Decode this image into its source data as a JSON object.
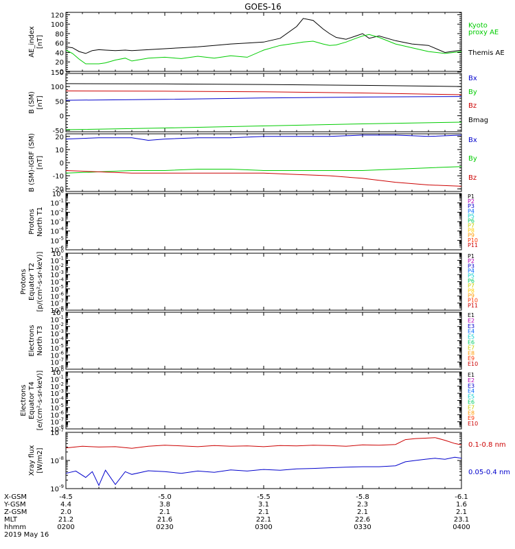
{
  "title": "GOES-16",
  "chart_data": [
    {
      "id": "ae",
      "type": "line",
      "ylabel": [
        "AE_index",
        "[nT]"
      ],
      "yscale": "linear",
      "ylim": [
        0,
        125
      ],
      "ticks": [
        0,
        20,
        40,
        60,
        80,
        100,
        120
      ],
      "tick_labels": [
        "0",
        "20",
        "40",
        "60",
        "80",
        "100",
        "120"
      ],
      "legend": [
        {
          "name": "Kyoto proxy AE",
          "lines": [
            "Kyoto",
            "proxy AE"
          ],
          "color": "#00cc00"
        },
        {
          "name": "Themis AE",
          "lines": [
            "Themis AE"
          ],
          "color": "#000000"
        }
      ],
      "series": [
        {
          "name": "Themis AE",
          "color": "#000000",
          "x": [
            0,
            2,
            4,
            6,
            8,
            10,
            12,
            15,
            18,
            20,
            25,
            30,
            35,
            40,
            45,
            50,
            55,
            60,
            65,
            70,
            72,
            75,
            78,
            80,
            82,
            85,
            88,
            90,
            92,
            95,
            100,
            105,
            110,
            115,
            120
          ],
          "values": [
            52,
            50,
            42,
            38,
            44,
            46,
            45,
            44,
            45,
            44,
            46,
            48,
            50,
            52,
            55,
            58,
            60,
            62,
            70,
            95,
            112,
            108,
            90,
            80,
            72,
            68,
            75,
            80,
            70,
            75,
            65,
            58,
            55,
            40,
            45
          ]
        },
        {
          "name": "Kyoto proxy AE",
          "color": "#00cc00",
          "x": [
            0,
            2,
            4,
            6,
            8,
            10,
            12,
            15,
            18,
            20,
            25,
            30,
            35,
            40,
            45,
            50,
            55,
            60,
            65,
            70,
            72,
            75,
            78,
            80,
            82,
            85,
            88,
            90,
            92,
            95,
            100,
            105,
            110,
            115,
            120
          ],
          "values": [
            45,
            38,
            26,
            16,
            16,
            16,
            18,
            24,
            28,
            22,
            28,
            30,
            27,
            32,
            28,
            33,
            30,
            45,
            55,
            60,
            62,
            64,
            58,
            55,
            56,
            62,
            70,
            75,
            78,
            72,
            58,
            50,
            42,
            38,
            42
          ]
        }
      ]
    },
    {
      "id": "bsm",
      "type": "line",
      "ylabel": [
        "B (SM)",
        "[nT]"
      ],
      "yscale": "linear",
      "ylim": [
        -55,
        145
      ],
      "ticks": [
        -50,
        0,
        50,
        100,
        150
      ],
      "tick_labels": [
        "-50",
        "0",
        "50",
        "100",
        "150"
      ],
      "legend": [
        {
          "name": "Bx",
          "lines": [
            "Bx"
          ],
          "color": "#0000cc"
        },
        {
          "name": "By",
          "lines": [
            "By"
          ],
          "color": "#00cc00"
        },
        {
          "name": "Bz",
          "lines": [
            "Bz"
          ],
          "color": "#cc0000"
        },
        {
          "name": "Bmag",
          "lines": [
            "Bmag"
          ],
          "color": "#000000"
        }
      ],
      "series": [
        {
          "name": "Bmag",
          "color": "#000000",
          "x": [
            0,
            30,
            60,
            90,
            120
          ],
          "values": [
            110,
            109,
            107,
            104,
            100
          ]
        },
        {
          "name": "Bz",
          "color": "#cc0000",
          "x": [
            0,
            30,
            60,
            90,
            120
          ],
          "values": [
            85,
            84,
            82,
            78,
            72
          ]
        },
        {
          "name": "Bx",
          "color": "#0000cc",
          "x": [
            0,
            30,
            60,
            90,
            120
          ],
          "values": [
            53,
            56,
            61,
            64,
            66
          ]
        },
        {
          "name": "By",
          "color": "#00cc00",
          "x": [
            0,
            30,
            60,
            90,
            120
          ],
          "values": [
            -48,
            -42,
            -35,
            -28,
            -22
          ]
        }
      ]
    },
    {
      "id": "bigrf",
      "type": "line",
      "ylabel": [
        "B (SM)-IGRF (SM)",
        "[nT]"
      ],
      "yscale": "linear",
      "ylim": [
        -22,
        22
      ],
      "ticks": [
        -20,
        -10,
        0,
        10,
        20
      ],
      "tick_labels": [
        "-20",
        "-10",
        "0",
        "10",
        "20"
      ],
      "legend": [
        {
          "name": "Bx",
          "lines": [
            "Bx"
          ],
          "color": "#0000cc"
        },
        {
          "name": "By",
          "lines": [
            "By"
          ],
          "color": "#00cc00"
        },
        {
          "name": "Bz",
          "lines": [
            "Bz"
          ],
          "color": "#cc0000"
        }
      ],
      "series": [
        {
          "name": "Bx",
          "color": "#0000cc",
          "x": [
            0,
            10,
            20,
            25,
            30,
            40,
            50,
            60,
            70,
            80,
            90,
            100,
            110,
            120
          ],
          "values": [
            18,
            19,
            19,
            17,
            18,
            19,
            19,
            20,
            20,
            20,
            21,
            21,
            20,
            21
          ]
        },
        {
          "name": "By",
          "color": "#00cc00",
          "x": [
            0,
            10,
            20,
            30,
            40,
            50,
            60,
            70,
            80,
            90,
            100,
            110,
            120
          ],
          "values": [
            -8,
            -7,
            -6,
            -6,
            -5,
            -5,
            -6,
            -6,
            -6,
            -6,
            -5,
            -4,
            -3
          ]
        },
        {
          "name": "Bz",
          "color": "#cc0000",
          "x": [
            0,
            10,
            20,
            30,
            40,
            50,
            60,
            70,
            80,
            90,
            100,
            110,
            120
          ],
          "values": [
            -6,
            -7,
            -8,
            -8,
            -8,
            -8,
            -8,
            -9,
            -10,
            -12,
            -15,
            -17,
            -18
          ]
        }
      ]
    },
    {
      "id": "p_t1",
      "type": "line",
      "ylabel": [
        "Protons",
        "North T1"
      ],
      "yscale": "log",
      "ylim": [
        1e-06,
        1
      ],
      "ticks": [
        1,
        0.1,
        0.01,
        0.001,
        0.0001,
        1e-05,
        1e-06
      ],
      "tick_labels": [
        "10^0",
        "10^-1",
        "10^-2",
        "10^-3",
        "10^-4",
        "10^-5",
        "10^-6"
      ],
      "legend": [
        {
          "name": "P1",
          "lines": [
            "P1"
          ],
          "color": "#000000"
        },
        {
          "name": "P2",
          "lines": [
            "P2"
          ],
          "color": "#b300b3"
        },
        {
          "name": "P3",
          "lines": [
            "P3"
          ],
          "color": "#0000cc"
        },
        {
          "name": "P4",
          "lines": [
            "P4"
          ],
          "color": "#0066ff"
        },
        {
          "name": "P5",
          "lines": [
            "P5"
          ],
          "color": "#00cccc"
        },
        {
          "name": "P6",
          "lines": [
            "P6"
          ],
          "color": "#00cc66"
        },
        {
          "name": "P7",
          "lines": [
            "P7"
          ],
          "color": "#cccc00"
        },
        {
          "name": "P8",
          "lines": [
            "P8"
          ],
          "color": "#ffcc00"
        },
        {
          "name": "P9",
          "lines": [
            "P9"
          ],
          "color": "#ff9900"
        },
        {
          "name": "P10",
          "lines": [
            "P10"
          ],
          "color": "#ff3300"
        },
        {
          "name": "P11",
          "lines": [
            "P11"
          ],
          "color": "#cc0000"
        }
      ],
      "series": []
    },
    {
      "id": "p_t2",
      "type": "line",
      "ylabel": [
        "Protons",
        "Equator T2",
        "[p/(cm²-s-sr-keV)]"
      ],
      "yscale": "log",
      "ylim": [
        1e-08,
        1
      ],
      "ticks": [
        1,
        0.1,
        0.01,
        0.001,
        0.0001,
        1e-05,
        1e-06,
        1e-07,
        1e-08
      ],
      "tick_labels": [
        "10^0",
        "10^-1",
        "10^-2",
        "10^-3",
        "10^-4",
        "10^-5",
        "10^-6",
        "10^-7",
        "10^-8"
      ],
      "legend": [
        {
          "name": "P1",
          "lines": [
            "P1"
          ],
          "color": "#000000"
        },
        {
          "name": "P2",
          "lines": [
            "P2"
          ],
          "color": "#b300b3"
        },
        {
          "name": "P3",
          "lines": [
            "P3"
          ],
          "color": "#0000cc"
        },
        {
          "name": "P4",
          "lines": [
            "P4"
          ],
          "color": "#0066ff"
        },
        {
          "name": "P5",
          "lines": [
            "P5"
          ],
          "color": "#00cccc"
        },
        {
          "name": "P6",
          "lines": [
            "P6"
          ],
          "color": "#00cc66"
        },
        {
          "name": "P7",
          "lines": [
            "P7"
          ],
          "color": "#cccc00"
        },
        {
          "name": "P8",
          "lines": [
            "P8"
          ],
          "color": "#ffcc00"
        },
        {
          "name": "P9",
          "lines": [
            "P9"
          ],
          "color": "#ff9900"
        },
        {
          "name": "P10",
          "lines": [
            "P10"
          ],
          "color": "#ff3300"
        },
        {
          "name": "P11",
          "lines": [
            "P11"
          ],
          "color": "#cc0000"
        }
      ],
      "series": []
    },
    {
      "id": "e_t3",
      "type": "line",
      "ylabel": [
        "Electrons",
        "North T3"
      ],
      "yscale": "log",
      "ylim": [
        1e-08,
        1
      ],
      "ticks": [
        1,
        0.1,
        0.01,
        0.001,
        0.0001,
        1e-05,
        1e-06,
        1e-07,
        1e-08
      ],
      "tick_labels": [
        "10^0",
        "10^-1",
        "10^-2",
        "10^-3",
        "10^-4",
        "10^-5",
        "10^-6",
        "10^-7",
        "10^-8"
      ],
      "legend": [
        {
          "name": "E1",
          "lines": [
            "E1"
          ],
          "color": "#000000"
        },
        {
          "name": "E2",
          "lines": [
            "E2"
          ],
          "color": "#b300b3"
        },
        {
          "name": "E3",
          "lines": [
            "E3"
          ],
          "color": "#0000cc"
        },
        {
          "name": "E4",
          "lines": [
            "E4"
          ],
          "color": "#0066ff"
        },
        {
          "name": "E5",
          "lines": [
            "E5"
          ],
          "color": "#00cccc"
        },
        {
          "name": "E6",
          "lines": [
            "E6"
          ],
          "color": "#00cc66"
        },
        {
          "name": "E7",
          "lines": [
            "E7"
          ],
          "color": "#cccc00"
        },
        {
          "name": "E8",
          "lines": [
            "E8"
          ],
          "color": "#ff9900"
        },
        {
          "name": "E9",
          "lines": [
            "E9"
          ],
          "color": "#ff3300"
        },
        {
          "name": "E10",
          "lines": [
            "E10"
          ],
          "color": "#cc0000"
        }
      ],
      "series": []
    },
    {
      "id": "e_t4",
      "type": "line",
      "ylabel": [
        "Electrons",
        "Equator T4",
        "[e/(cm²-s-sr-keV)]"
      ],
      "yscale": "log",
      "ylim": [
        1e-08,
        1
      ],
      "ticks": [
        1,
        0.1,
        0.01,
        0.001,
        0.0001,
        1e-05,
        1e-06,
        1e-07,
        1e-08
      ],
      "tick_labels": [
        "10^0",
        "10^-1",
        "10^-2",
        "10^-3",
        "10^-4",
        "10^-5",
        "10^-6",
        "10^-7",
        "10^-8"
      ],
      "legend": [
        {
          "name": "E1",
          "lines": [
            "E1"
          ],
          "color": "#000000"
        },
        {
          "name": "E2",
          "lines": [
            "E2"
          ],
          "color": "#b300b3"
        },
        {
          "name": "E3",
          "lines": [
            "E3"
          ],
          "color": "#0000cc"
        },
        {
          "name": "E4",
          "lines": [
            "E4"
          ],
          "color": "#0066ff"
        },
        {
          "name": "E5",
          "lines": [
            "E5"
          ],
          "color": "#00cccc"
        },
        {
          "name": "E6",
          "lines": [
            "E6"
          ],
          "color": "#00cc66"
        },
        {
          "name": "E7",
          "lines": [
            "E7"
          ],
          "color": "#cccc00"
        },
        {
          "name": "E8",
          "lines": [
            "E8"
          ],
          "color": "#ff9900"
        },
        {
          "name": "E9",
          "lines": [
            "E9"
          ],
          "color": "#ff3300"
        },
        {
          "name": "E10",
          "lines": [
            "E10"
          ],
          "color": "#cc0000"
        }
      ],
      "series": []
    },
    {
      "id": "xray",
      "type": "line",
      "ylabel": [
        "Xray flux",
        "[W/m2]"
      ],
      "yscale": "log",
      "ylim": [
        1e-09,
        1e-07
      ],
      "ticks": [
        1e-07,
        1e-08,
        1e-09
      ],
      "tick_labels": [
        "10^-7",
        "10^-8",
        "10^-9"
      ],
      "legend": [
        {
          "name": "0.1-0.8 nm",
          "lines": [
            "0.1-0.8 nm"
          ],
          "color": "#cc0000"
        },
        {
          "name": "0.05-0.4 nm",
          "lines": [
            "0.05-0.4 nm"
          ],
          "color": "#0000cc"
        }
      ],
      "series": [
        {
          "name": "0.1-0.8 nm",
          "color": "#cc0000",
          "x": [
            0,
            5,
            10,
            15,
            20,
            25,
            30,
            35,
            40,
            45,
            50,
            55,
            60,
            65,
            70,
            75,
            80,
            85,
            90,
            95,
            100,
            103,
            106,
            109,
            112,
            115,
            118,
            120
          ],
          "values": [
            2.8e-08,
            3.2e-08,
            3e-08,
            3.1e-08,
            2.7e-08,
            3.2e-08,
            3.5e-08,
            3.3e-08,
            3.1e-08,
            3.4e-08,
            3.2e-08,
            3.3e-08,
            3.1e-08,
            3.4e-08,
            3.3e-08,
            3.5e-08,
            3.4e-08,
            3.2e-08,
            3.6e-08,
            3.5e-08,
            3.7e-08,
            5.5e-08,
            6e-08,
            6.2e-08,
            6.5e-08,
            5.2e-08,
            4e-08,
            3.6e-08
          ]
        },
        {
          "name": "0.05-0.4 nm",
          "color": "#0000cc",
          "x": [
            0,
            3,
            6,
            8,
            10,
            12,
            15,
            18,
            20,
            25,
            30,
            35,
            40,
            45,
            50,
            55,
            60,
            65,
            70,
            75,
            80,
            85,
            90,
            95,
            100,
            103,
            106,
            109,
            112,
            115,
            118,
            120
          ],
          "values": [
            3.5e-09,
            4.2e-09,
            2.5e-09,
            4e-09,
            1.3e-09,
            4.5e-09,
            1.4e-09,
            4e-09,
            3.2e-09,
            4.3e-09,
            4e-09,
            3.5e-09,
            4.2e-09,
            3.8e-09,
            4.6e-09,
            4.2e-09,
            4.8e-09,
            4.5e-09,
            5e-09,
            5.2e-09,
            5.5e-09,
            5.8e-09,
            6e-09,
            6e-09,
            6.5e-09,
            9e-09,
            1e-08,
            1.1e-08,
            1.2e-08,
            1.1e-08,
            1.3e-08,
            1.2e-08
          ]
        }
      ]
    }
  ],
  "x_axis": {
    "minutes_range": [
      0,
      120
    ],
    "tick_minutes": [
      0,
      30,
      60,
      90,
      120
    ],
    "minor_every": 5,
    "rows": [
      {
        "label": "X-GSM",
        "values": [
          "-4.5",
          "-5.0",
          "-5.5",
          "-5.8",
          "-6.1"
        ]
      },
      {
        "label": "Y-GSM",
        "values": [
          "4.4",
          "3.8",
          "3.1",
          "2.3",
          "1.6"
        ]
      },
      {
        "label": "Z-GSM",
        "values": [
          "2.0",
          "2.1",
          "2.1",
          "2.1",
          "2.1"
        ]
      },
      {
        "label": "MLT",
        "values": [
          "21.2",
          "21.6",
          "22.1",
          "22.6",
          "23.1"
        ]
      },
      {
        "label": "hhmm",
        "values": [
          "0200",
          "0230",
          "0300",
          "0330",
          "0400"
        ]
      }
    ],
    "date": "2019 May 16"
  }
}
